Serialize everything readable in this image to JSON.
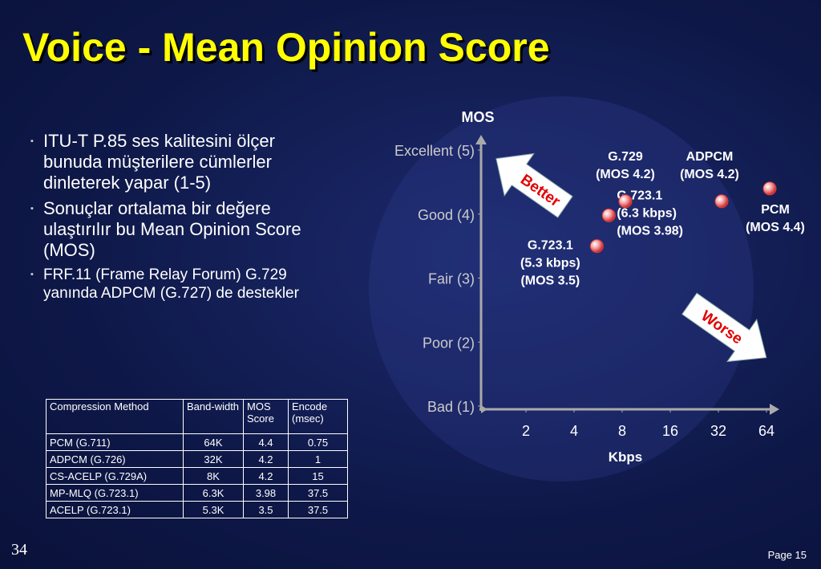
{
  "title": "Voice - Mean Opinion Score",
  "bullets": [
    "ITU-T P.85  ses kalitesini ölçer bunuda müşterilere cümlerler dinleterek yapar (1-5)",
    "Sonuçlar ortalama bir değere ulaştırılır bu  Mean Opinion Score (MOS)",
    "FRF.11 (Frame Relay Forum) G.729 yanında  ADPCM (G.727) de destekler"
  ],
  "table": {
    "header": [
      "Compression Method",
      "Band-width",
      "MOS Score",
      "Encode (msec)"
    ],
    "rows": [
      [
        "PCM (G.711)",
        "64K",
        "4.4",
        "0.75"
      ],
      [
        "ADPCM (G.726)",
        "32K",
        "4.2",
        "1"
      ],
      [
        "CS-ACELP (G.729A)",
        "8K",
        "4.2",
        "15"
      ],
      [
        "MP-MLQ (G.723.1)",
        "6.3K",
        "3.98",
        "37.5"
      ],
      [
        "ACELP (G.723.1)",
        "5.3K",
        "3.5",
        "37.5"
      ]
    ]
  },
  "chart_data": {
    "type": "scatter",
    "y_label": "MOS",
    "x_label": "Kbps",
    "x_log": true,
    "xlim": [
      1,
      64
    ],
    "xticks": [
      2,
      4,
      8,
      16,
      32,
      64
    ],
    "ylim": [
      1,
      5
    ],
    "yticks": [
      {
        "value": 5,
        "label": "Excellent (5)"
      },
      {
        "value": 4,
        "label": "Good (4)"
      },
      {
        "value": 3,
        "label": "Fair (3)"
      },
      {
        "value": 2,
        "label": "Poor (2)"
      },
      {
        "value": 1,
        "label": "Bad (1)"
      }
    ],
    "color": "#e83a3a",
    "x": [
      5.3,
      6.3,
      8,
      32,
      64
    ],
    "values": [
      3.5,
      3.98,
      4.2,
      4.2,
      4.4
    ],
    "point_labels": [
      [
        "G.723.1",
        "(5.3 kbps)",
        "(MOS 3.5)"
      ],
      [
        "G.723.1",
        "(6.3 kbps)",
        "(MOS 3.98)"
      ],
      [
        "G.729",
        "(MOS 4.2)"
      ],
      [
        "ADPCM",
        "(MOS 4.2)"
      ],
      [
        "PCM",
        "(MOS 4.4)"
      ]
    ],
    "annotations": [
      "Better",
      "Worse"
    ]
  },
  "footer": {
    "slide_number": "34",
    "page": "Page 15"
  }
}
